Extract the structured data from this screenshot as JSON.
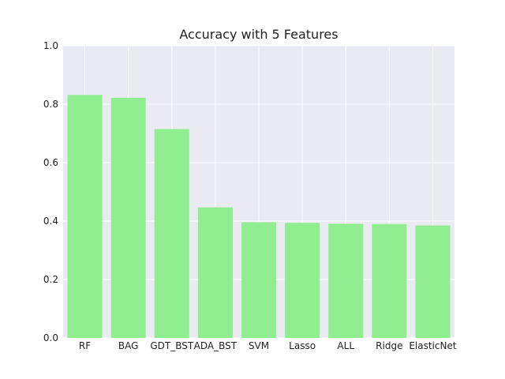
{
  "chart_data": {
    "type": "bar",
    "title": "Accuracy with 5 Features",
    "xlabel": "",
    "ylabel": "",
    "categories": [
      "RF",
      "BAG",
      "GDT_BST",
      "ADA_BST",
      "SVM",
      "Lasso",
      "ALL",
      "Ridge",
      "ElasticNet"
    ],
    "values": [
      0.832,
      0.822,
      0.715,
      0.447,
      0.396,
      0.394,
      0.391,
      0.39,
      0.385
    ],
    "ylim": [
      0,
      1.0
    ],
    "yticks": [
      "0.0",
      "0.2",
      "0.4",
      "0.6",
      "0.8",
      "1.0"
    ],
    "grid": true,
    "bar_color": "#90ee90",
    "background_color": "#eaeaf2",
    "grid_color": "#ffffff"
  }
}
